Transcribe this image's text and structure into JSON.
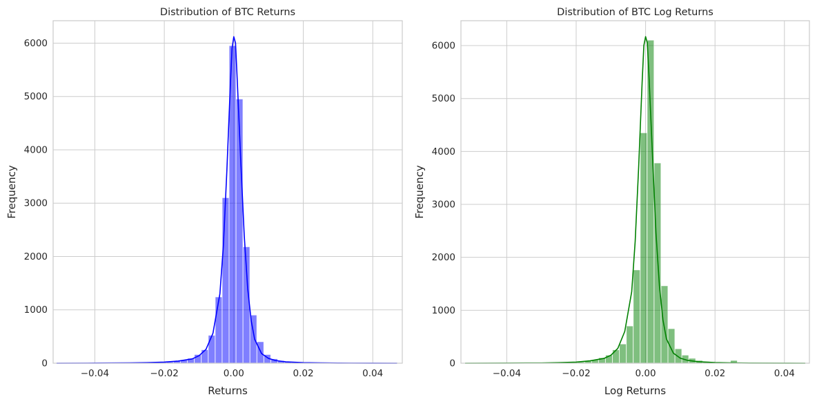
{
  "chart_data": [
    {
      "type": "bar",
      "title": "Distribution of BTC Returns",
      "xlabel": "Returns",
      "ylabel": "Frequency",
      "xlim": [
        -0.052,
        0.0485
      ],
      "ylim": [
        0,
        6420
      ],
      "xticks": [
        -0.04,
        -0.02,
        0.0,
        0.02,
        0.04
      ],
      "xtick_labels": [
        "−0.04",
        "−0.02",
        "0.00",
        "0.02",
        "0.04"
      ],
      "yticks": [
        0,
        1000,
        2000,
        3000,
        4000,
        5000,
        6000
      ],
      "ytick_labels": [
        "0",
        "1000",
        "2000",
        "3000",
        "4000",
        "5000",
        "6000"
      ],
      "grid": true,
      "color": "#0000ff",
      "bins": {
        "x": [
          -0.0283,
          -0.0263,
          -0.0243,
          -0.0223,
          -0.0203,
          -0.0183,
          -0.0163,
          -0.0143,
          -0.0123,
          -0.0103,
          -0.0083,
          -0.0063,
          -0.0043,
          -0.0023,
          -0.0003,
          0.0017,
          0.0037,
          0.0057,
          0.0077,
          0.0097,
          0.0117,
          0.0137,
          0.0157,
          0.0177,
          0.0197,
          0.0217,
          0.0237,
          0.0257,
          0.0277
        ],
        "counts": [
          10,
          5,
          8,
          12,
          15,
          20,
          40,
          55,
          90,
          160,
          250,
          520,
          1240,
          3100,
          5950,
          4950,
          2180,
          900,
          400,
          160,
          80,
          45,
          25,
          15,
          10,
          8,
          5,
          5,
          3
        ]
      },
      "kde": {
        "x": [
          -0.051,
          -0.04,
          -0.03,
          -0.025,
          -0.02,
          -0.016,
          -0.012,
          -0.01,
          -0.008,
          -0.006,
          -0.004,
          -0.003,
          -0.002,
          -0.001,
          -0.0005,
          0.0,
          0.0005,
          0.001,
          0.002,
          0.003,
          0.004,
          0.005,
          0.006,
          0.008,
          0.01,
          0.012,
          0.015,
          0.02,
          0.025,
          0.03,
          0.04,
          0.047
        ],
        "y": [
          0,
          2,
          5,
          10,
          20,
          40,
          80,
          140,
          260,
          560,
          1300,
          2200,
          3600,
          5200,
          5900,
          6120,
          6000,
          5300,
          3800,
          2400,
          1400,
          800,
          450,
          180,
          90,
          50,
          25,
          10,
          5,
          2,
          1,
          0
        ]
      }
    },
    {
      "type": "bar",
      "title": "Distribution of BTC Log Returns",
      "xlabel": "Log Returns",
      "ylabel": "Frequency",
      "xlim": [
        -0.0532,
        0.0472
      ],
      "ylim": [
        0,
        6470
      ],
      "xticks": [
        -0.04,
        -0.02,
        0.0,
        0.02,
        0.04
      ],
      "xtick_labels": [
        "−0.04",
        "−0.02",
        "0.00",
        "0.02",
        "0.04"
      ],
      "yticks": [
        0,
        1000,
        2000,
        3000,
        4000,
        5000,
        6000
      ],
      "ytick_labels": [
        "0",
        "1000",
        "2000",
        "3000",
        "4000",
        "5000",
        "6000"
      ],
      "grid": true,
      "color": "#008000",
      "bins": {
        "x": [
          -0.0285,
          -0.0265,
          -0.0245,
          -0.0225,
          -0.0205,
          -0.0185,
          -0.0165,
          -0.0145,
          -0.0125,
          -0.0105,
          -0.0085,
          -0.0065,
          -0.0045,
          -0.0025,
          -0.0005,
          0.0015,
          0.0035,
          0.0055,
          0.0075,
          0.0095,
          0.0115,
          0.0135,
          0.0155,
          0.0175,
          0.0195,
          0.0215,
          0.0235,
          0.0255,
          0.0275
        ],
        "counts": [
          10,
          5,
          8,
          12,
          15,
          20,
          40,
          60,
          100,
          150,
          250,
          360,
          700,
          1760,
          4350,
          6100,
          3780,
          1460,
          650,
          270,
          150,
          90,
          50,
          30,
          15,
          10,
          8,
          50,
          5
        ]
      },
      "kde": {
        "x": [
          -0.052,
          -0.04,
          -0.03,
          -0.025,
          -0.02,
          -0.016,
          -0.012,
          -0.01,
          -0.008,
          -0.006,
          -0.004,
          -0.003,
          -0.002,
          -0.001,
          -0.0005,
          0.0,
          0.0005,
          0.001,
          0.002,
          0.003,
          0.004,
          0.005,
          0.006,
          0.008,
          0.01,
          0.012,
          0.015,
          0.02,
          0.025,
          0.03,
          0.04,
          0.046
        ],
        "y": [
          0,
          2,
          5,
          10,
          20,
          45,
          90,
          150,
          280,
          600,
          1350,
          2300,
          3700,
          5300,
          6000,
          6170,
          6050,
          5400,
          3900,
          2450,
          1450,
          820,
          460,
          190,
          95,
          55,
          28,
          12,
          6,
          3,
          1,
          0
        ]
      }
    }
  ]
}
